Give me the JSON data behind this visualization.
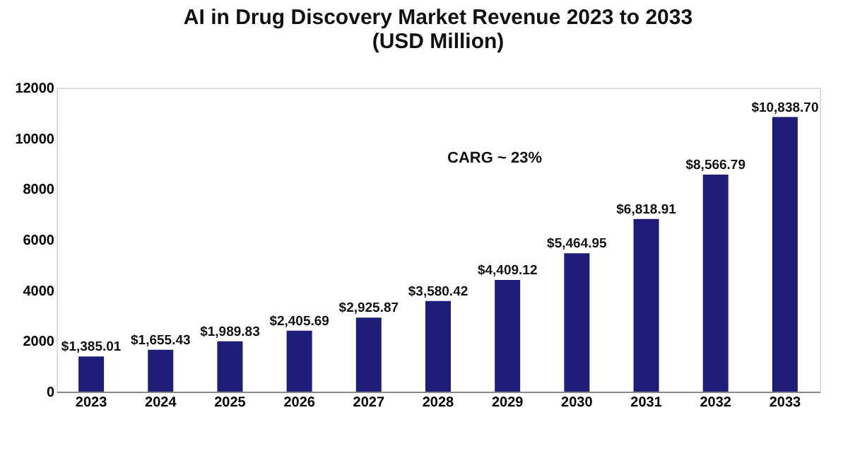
{
  "chart_data": {
    "type": "bar",
    "title": [
      "AI in Drug Discovery Market Revenue 2023 to 2033",
      "(USD Million)"
    ],
    "categories": [
      "2023",
      "2024",
      "2025",
      "2026",
      "2027",
      "2028",
      "2029",
      "2030",
      "2031",
      "2032",
      "2033"
    ],
    "values": [
      1385.01,
      1655.43,
      1989.83,
      2405.69,
      2925.87,
      3580.42,
      4409.12,
      5464.95,
      6818.91,
      8566.79,
      10838.7
    ],
    "value_labels": [
      "$1,385.01",
      "$1,655.43",
      "$1,989.83",
      "$2,405.69",
      "$2,925.87",
      "$3,580.42",
      "$4,409.12",
      "$5,464.95",
      "$6,818.91",
      "$8,566.79",
      "$10,838.70"
    ],
    "color": "#1e1e78",
    "ylim": [
      0,
      12000
    ],
    "yticks": [
      0,
      2000,
      4000,
      6000,
      8000,
      10000,
      12000
    ],
    "grid": false,
    "annotations": [
      "CARG ~ 23%"
    ]
  }
}
